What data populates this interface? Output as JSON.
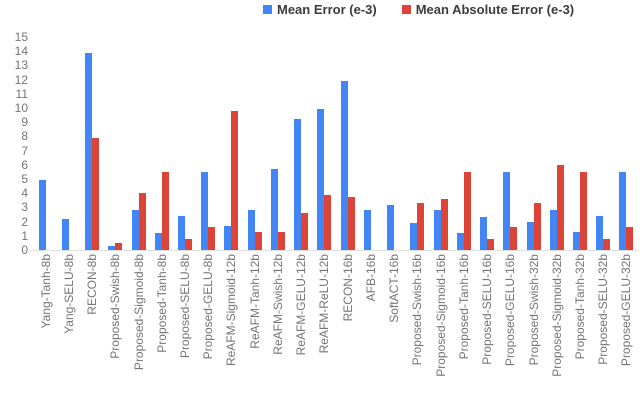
{
  "legend": {
    "items": [
      {
        "label": "Mean Error (e-3)",
        "color": "#4285F4"
      },
      {
        "label": "Mean Absolute Error (e-3)",
        "color": "#DB4437"
      }
    ]
  },
  "chart_data": {
    "type": "bar",
    "title": "",
    "xlabel": "",
    "ylabel": "",
    "ylim": [
      0,
      15
    ],
    "yticks": [
      0,
      1,
      2,
      3,
      4,
      5,
      6,
      7,
      8,
      9,
      10,
      11,
      12,
      13,
      14,
      15
    ],
    "grid": false,
    "legend_position": "top",
    "axis_label_color": "#757575",
    "baseline_color": "#e0e0e0",
    "categories": [
      "Yang-Tanh-8b",
      "Yang-SELU-8b",
      "RECON-8b",
      "Proposed-Swish-8b",
      "Proposed-Sigmoid-8b",
      "Proposed-Tanh-8b",
      "Proposed-SELU-8b",
      "Proposed-GELU-8b",
      "ReAFM-Sigmoid-12b",
      "ReAFM-Tanh-12b",
      "ReAFM-Swish-12b",
      "ReAFM-GELU-12b",
      "ReAFM-ReLU-12b",
      "RECON-16b",
      "AFB-16b",
      "SoftACT-16b",
      "Proposed-Swish-16b",
      "Proposed-Sigmoid-16b",
      "Proposed-Tanh-16b",
      "Proposed-SELU-16b",
      "Proposed-GELU-16b",
      "Proposed-Swish-32b",
      "Proposed-Sigmoid-32b",
      "Proposed-Tanh-32b",
      "Proposed-SELU-32b",
      "Proposed-GELU-32b"
    ],
    "series": [
      {
        "name": "Mean Error (e-3)",
        "color": "#4285F4",
        "values": [
          4.9,
          2.2,
          13.9,
          0.3,
          2.8,
          1.2,
          2.4,
          5.5,
          1.7,
          2.8,
          5.7,
          9.2,
          9.9,
          11.9,
          2.8,
          3.2,
          1.9,
          2.8,
          1.2,
          2.3,
          5.5,
          2.0,
          2.8,
          1.3,
          2.4,
          5.5
        ]
      },
      {
        "name": "Mean Absolute Error (e-3)",
        "color": "#DB4437",
        "values": [
          0,
          0,
          7.9,
          0.5,
          4.0,
          5.5,
          0.75,
          1.6,
          9.8,
          1.3,
          1.3,
          2.6,
          3.9,
          3.7,
          0,
          0,
          3.3,
          3.6,
          5.5,
          0.75,
          1.6,
          3.3,
          6.0,
          5.5,
          0.8,
          1.6
        ]
      }
    ]
  }
}
